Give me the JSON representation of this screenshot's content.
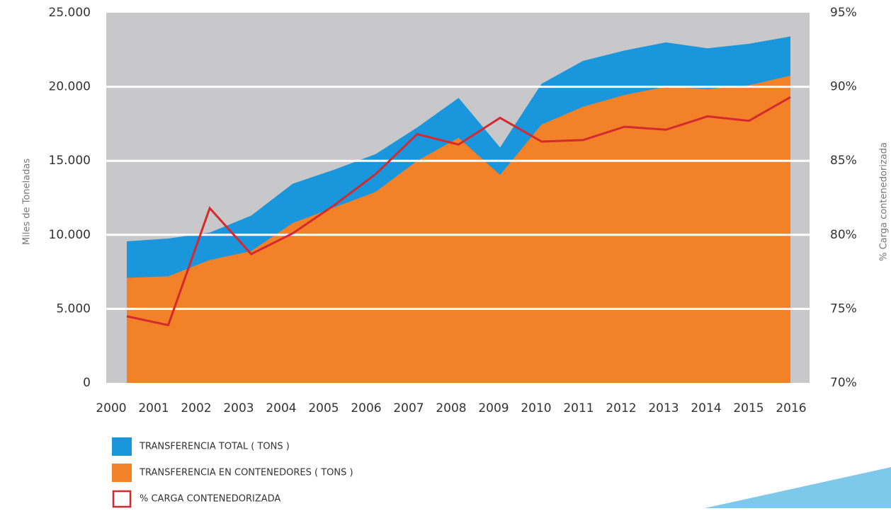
{
  "chart_data": {
    "type": "area",
    "categories": [
      "2000",
      "2001",
      "2002",
      "2003",
      "2004",
      "2005",
      "2006",
      "2007",
      "2008",
      "2009",
      "2010",
      "2011",
      "2012",
      "2013",
      "2014",
      "2015",
      "2016"
    ],
    "y_label": "Miles de Toneladas",
    "y2_label": "% Carga contenedorizada",
    "ylim": [
      0,
      25000
    ],
    "yticks": [
      0,
      {
        "value": 5000,
        "label": "5.000"
      },
      {
        "value": 10000,
        "label": "10.000"
      },
      {
        "value": 15000,
        "label": "15.000"
      },
      {
        "value": 20000,
        "label": "20.000"
      },
      {
        "value": 25000,
        "label": "25.000"
      }
    ],
    "y2lim": [
      70,
      95
    ],
    "y2ticks": [
      {
        "value": 70,
        "label": "70%"
      },
      {
        "value": 75,
        "label": "75%"
      },
      {
        "value": 80,
        "label": "80%"
      },
      {
        "value": 85,
        "label": "85%"
      },
      {
        "value": 90,
        "label": "90%"
      },
      {
        "value": 95,
        "label": "95%"
      }
    ],
    "grid": true,
    "series": [
      {
        "name": "TRANSFERENCIA TOTAL ( TONS )",
        "type": "area",
        "color": "#1a96dc",
        "values": [
          9560,
          9750,
          10150,
          11300,
          13450,
          14400,
          15450,
          17250,
          19250,
          15900,
          20200,
          21750,
          22450,
          23000,
          22600,
          22900,
          23400
        ]
      },
      {
        "name": "TRANSFERENCIA EN CONTENEDORES ( TONS )",
        "type": "area",
        "color": "#f28127",
        "values": [
          7100,
          7200,
          8300,
          8900,
          10800,
          11850,
          12900,
          15000,
          16550,
          14050,
          17450,
          18650,
          19450,
          20000,
          19850,
          20100,
          20750
        ]
      },
      {
        "name": "% CARGA CONTENEDORIZADA",
        "type": "line",
        "axis": "y2",
        "color": "#d42a2f",
        "values": [
          74.5,
          73.9,
          81.8,
          78.7,
          80.1,
          82.0,
          84.1,
          86.8,
          86.1,
          87.9,
          86.3,
          86.4,
          87.3,
          87.1,
          88.0,
          87.7,
          89.3
        ]
      }
    ]
  }
}
